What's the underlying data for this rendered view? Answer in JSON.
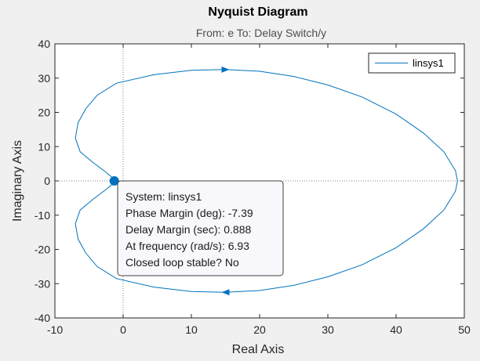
{
  "window": {
    "title": "Nyquist Diagram",
    "subtitle": "From: e  To: Delay Switch/y"
  },
  "chart_data": {
    "type": "line",
    "title": "Nyquist Diagram",
    "subtitle": "From: e  To: Delay Switch/y",
    "xlabel": "Real Axis",
    "ylabel": "Imaginary Axis",
    "xlim": [
      -10,
      50
    ],
    "ylim": [
      -40,
      40
    ],
    "xticks": [
      -10,
      0,
      10,
      20,
      30,
      40,
      50
    ],
    "yticks": [
      40,
      30,
      20,
      10,
      0,
      -10,
      -20,
      -30,
      -40
    ],
    "grid": false,
    "legend_position": "top-right",
    "series": [
      {
        "name": "linsys1",
        "color": "#0072bd",
        "x": [
          -1,
          -2.5,
          -4.5,
          -6.3,
          -7,
          -6.6,
          -5.5,
          -3.8,
          -1,
          4.5,
          10,
          15,
          20,
          25,
          30,
          35,
          40,
          44,
          47,
          48.7,
          49,
          48.7,
          47,
          44,
          40,
          35,
          30,
          25,
          20,
          15,
          10,
          4.5,
          -1,
          -3.8,
          -5.5,
          -6.6,
          -7,
          -6.3,
          -4.5,
          -2.5,
          -1
        ],
        "y": [
          0,
          2.5,
          5.5,
          8.5,
          12.5,
          17,
          21,
          25,
          28.5,
          31,
          32.3,
          32.5,
          32,
          30.5,
          28,
          24.5,
          19.5,
          14,
          8.5,
          3,
          0,
          -3,
          -8.5,
          -14,
          -19.5,
          -24.5,
          -28,
          -30.5,
          -32,
          -32.5,
          -32.3,
          -31,
          -28.5,
          -25,
          -21,
          -17,
          -12.5,
          -8.5,
          -5.5,
          -2.5,
          0
        ]
      }
    ],
    "marker": {
      "x": -1.3,
      "y": 0
    }
  },
  "legend": {
    "items": [
      "linsys1"
    ]
  },
  "datatip": {
    "lines": [
      "System: linsys1",
      "Phase Margin (deg): -7.39",
      "Delay Margin (sec): 0.888",
      "At frequency (rad/s): 6.93",
      "Closed loop stable? No"
    ]
  },
  "colors": {
    "background": "#f0f0f0",
    "plot_area": "#ffffff",
    "series": "#0072bd",
    "crosshair": "#808080",
    "tip_background": "#f8f8fc"
  }
}
